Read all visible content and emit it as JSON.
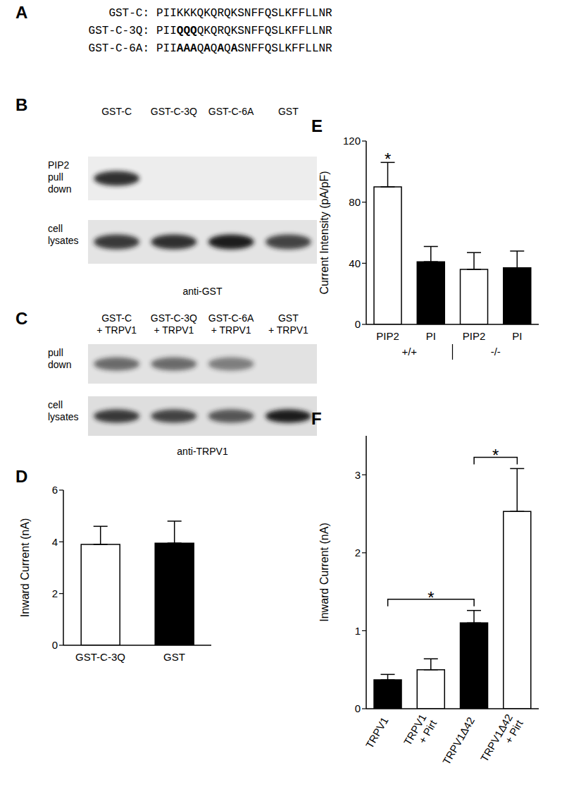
{
  "panels": {
    "A": {
      "title": "A",
      "sequences": [
        {
          "name": "GST-C:",
          "segments": [
            {
              "text": "PIIKKKQKQRQKSNFFQSLKFFLLNR",
              "bold": false
            }
          ]
        },
        {
          "name": "GST-C-3Q:",
          "segments": [
            {
              "text": "PII",
              "bold": false
            },
            {
              "text": "QQQ",
              "bold": true
            },
            {
              "text": "QKQRQKSNFFQSLKFFLLNR",
              "bold": false
            }
          ]
        },
        {
          "name": "GST-C-6A:",
          "segments": [
            {
              "text": "PII",
              "bold": false
            },
            {
              "text": "AAA",
              "bold": true
            },
            {
              "text": "Q",
              "bold": false
            },
            {
              "text": "A",
              "bold": true
            },
            {
              "text": "Q",
              "bold": false
            },
            {
              "text": "A",
              "bold": true
            },
            {
              "text": "Q",
              "bold": false
            },
            {
              "text": "A",
              "bold": true
            },
            {
              "text": "SNFFQSLKFFLLNR",
              "bold": false
            }
          ]
        }
      ]
    },
    "B": {
      "title": "B",
      "lanes": [
        "GST-C",
        "GST-C-3Q",
        "GST-C-6A",
        "GST"
      ],
      "rows": [
        {
          "label": "PIP2\npull\ndown",
          "bands": [
            0.9,
            0,
            0,
            0
          ]
        },
        {
          "label": "cell\nlysates",
          "bands": [
            0.85,
            0.9,
            1,
            0.8
          ]
        }
      ],
      "antibody": "anti-GST"
    },
    "C": {
      "title": "C",
      "lanes": [
        "GST-C\n+ TRPV1",
        "GST-C-3Q\n+ TRPV1",
        "GST-C-6A\n+ TRPV1",
        "GST\n+ TRPV1"
      ],
      "rows": [
        {
          "label": "pull\ndown",
          "bands": [
            0.6,
            0.6,
            0.5,
            0
          ]
        },
        {
          "label": "cell\nlysates",
          "bands": [
            0.85,
            0.8,
            0.7,
            1
          ]
        }
      ],
      "antibody": "anti-TRPV1"
    }
  },
  "chart_data": [
    {
      "type": "bar",
      "title": "D",
      "categories": [
        "GST-C-3Q",
        "GST"
      ],
      "values": [
        3.9,
        3.95
      ],
      "errors": [
        0.7,
        0.85
      ],
      "colors": [
        "#ffffff",
        "#000000"
      ],
      "ylabel": "Inward Current (nA)",
      "ylim": [
        0,
        6
      ],
      "yticks": [
        0,
        2,
        4,
        6
      ]
    },
    {
      "type": "bar",
      "title": "E",
      "categories": [
        "PIP2",
        "PI",
        "PIP2",
        "PI"
      ],
      "groups": [
        "+/+",
        "+/+",
        "-/-",
        "-/-"
      ],
      "values": [
        90,
        41,
        36,
        37
      ],
      "errors": [
        16,
        10,
        11,
        11
      ],
      "colors": [
        "#ffffff",
        "#000000",
        "#ffffff",
        "#000000"
      ],
      "ylabel": "Current Intensity (pA/pF)",
      "ylim": [
        0,
        120
      ],
      "yticks": [
        0,
        40,
        80,
        120
      ],
      "annotations": [
        {
          "text": "*",
          "category": 0
        }
      ]
    },
    {
      "type": "bar",
      "title": "F",
      "categories": [
        "TRPV1",
        "TRPV1\n+ Pirt",
        "TRPV1Δ42",
        "TRPV1Δ42\n+ Pirt"
      ],
      "values": [
        0.37,
        0.5,
        1.1,
        2.53
      ],
      "errors": [
        0.07,
        0.14,
        0.16,
        0.55
      ],
      "colors": [
        "#000000",
        "#ffffff",
        "#000000",
        "#ffffff"
      ],
      "ylabel": "Inward Current (nA)",
      "ylim": [
        0,
        3.5
      ],
      "yticks": [
        0,
        1,
        2,
        3
      ],
      "annotations": [
        {
          "text": "*",
          "categories": [
            0,
            2
          ]
        },
        {
          "text": "*",
          "categories": [
            2,
            3
          ]
        }
      ]
    }
  ]
}
